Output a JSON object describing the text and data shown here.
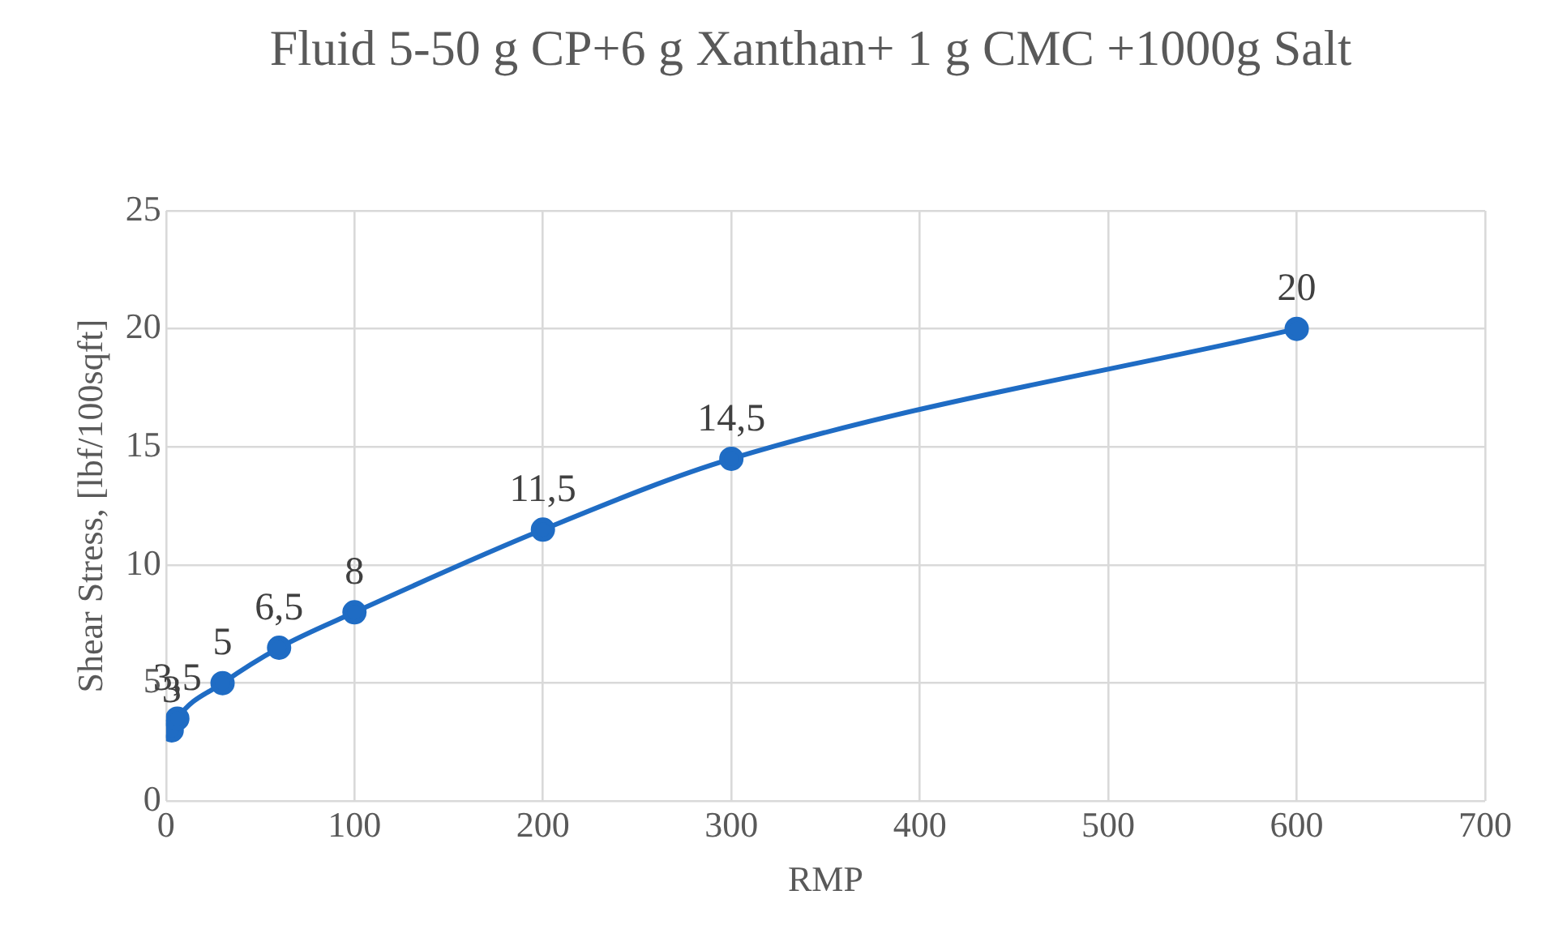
{
  "chart_data": {
    "type": "line",
    "title": "Fluid 5-50 g CP+6 g Xanthan+ 1 g CMC +1000g Salt",
    "xlabel": "RMP",
    "ylabel": "Shear Stress, [lbf/100sqft]",
    "x": [
      3,
      6,
      30,
      60,
      100,
      200,
      300,
      600
    ],
    "series": [
      {
        "color": "#1f6cc4",
        "values": [
          3,
          3.5,
          5,
          6.5,
          8,
          11.5,
          14.5,
          20
        ],
        "value_labels": [
          "3",
          "3,5",
          "5",
          "6,5",
          "8",
          "11,5",
          "14,5",
          "20"
        ]
      }
    ],
    "xlim": [
      0,
      700
    ],
    "xticks": [
      0,
      100,
      200,
      300,
      400,
      500,
      600,
      700
    ],
    "ylim": [
      0,
      25
    ],
    "yticks": [
      0,
      5,
      10,
      15,
      20,
      25
    ],
    "grid": true,
    "marker": "circle",
    "line_style": "solid",
    "legend": false
  }
}
